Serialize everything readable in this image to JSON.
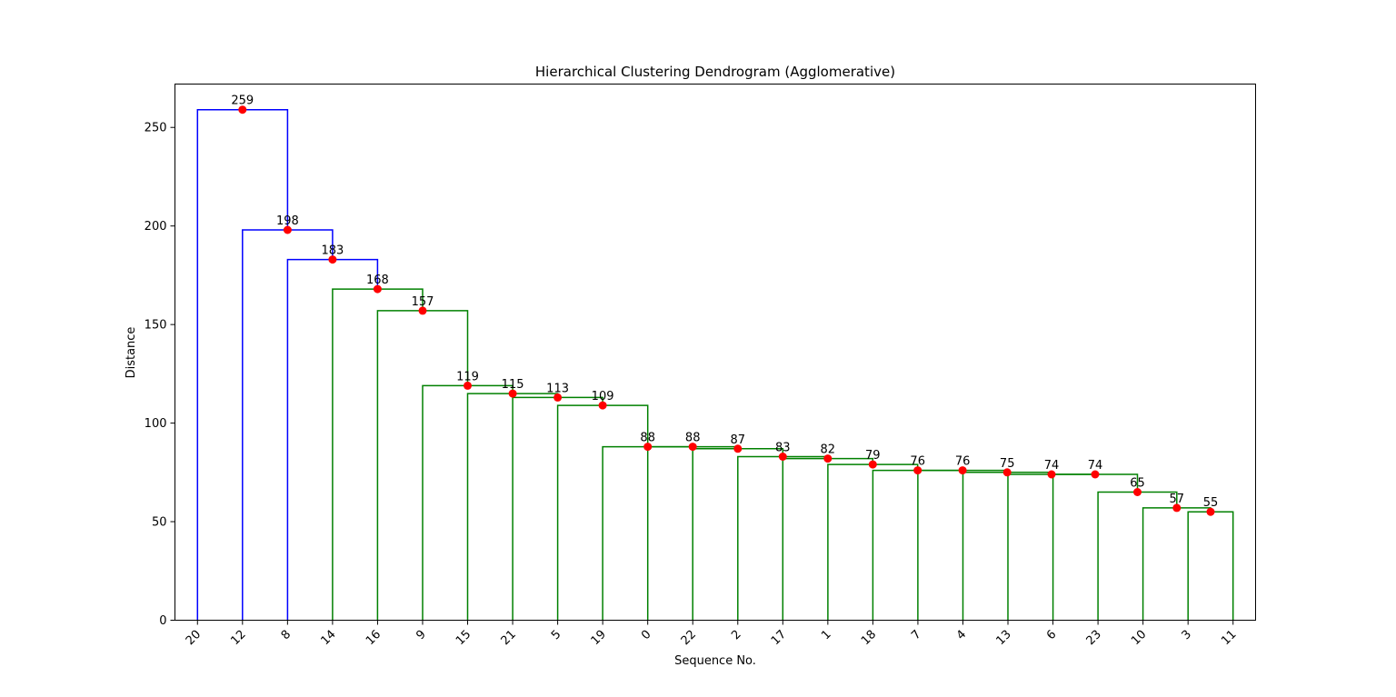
{
  "chart_data": {
    "type": "dendrogram",
    "title": "Hierarchical Clustering Dendrogram (Agglomerative)",
    "xlabel": "Sequence No.",
    "ylabel": "Distance",
    "ylim": [
      0,
      272
    ],
    "yticks": [
      0,
      50,
      100,
      150,
      200,
      250
    ],
    "grid": false,
    "colors": {
      "above_threshold": "#0000ff",
      "cluster": "#008000",
      "node_marker": "#ff0000"
    },
    "leaves": [
      "20",
      "12",
      "8",
      "14",
      "16",
      "9",
      "15",
      "21",
      "5",
      "19",
      "0",
      "22",
      "2",
      "17",
      "1",
      "18",
      "7",
      "4",
      "13",
      "6",
      "23",
      "10",
      "3",
      "11"
    ],
    "merges": [
      {
        "left": "3",
        "right": "11",
        "height": 55,
        "label": "55",
        "color": "cluster"
      },
      {
        "left": "10",
        "right": 0,
        "height": 57,
        "label": "57",
        "color": "cluster"
      },
      {
        "left": "23",
        "right": 1,
        "height": 65,
        "label": "65",
        "color": "cluster"
      },
      {
        "left": "6",
        "right": 2,
        "height": 74,
        "label": "74",
        "color": "cluster"
      },
      {
        "left": "13",
        "right": 3,
        "height": 74,
        "label": "74",
        "color": "cluster"
      },
      {
        "left": "4",
        "right": 4,
        "height": 75,
        "label": "75",
        "color": "cluster"
      },
      {
        "left": "7",
        "right": 5,
        "height": 76,
        "label": "76",
        "color": "cluster"
      },
      {
        "left": "18",
        "right": 6,
        "height": 76,
        "label": "76",
        "color": "cluster"
      },
      {
        "left": "1",
        "right": 7,
        "height": 79,
        "label": "79",
        "color": "cluster"
      },
      {
        "left": "17",
        "right": 8,
        "height": 82,
        "label": "82",
        "color": "cluster"
      },
      {
        "left": "2",
        "right": 9,
        "height": 83,
        "label": "83",
        "color": "cluster"
      },
      {
        "left": "22",
        "right": 10,
        "height": 87,
        "label": "87",
        "color": "cluster"
      },
      {
        "left": "0",
        "right": 11,
        "height": 88,
        "label": "88",
        "color": "cluster"
      },
      {
        "left": "19",
        "right": 12,
        "height": 88,
        "label": "88",
        "color": "cluster"
      },
      {
        "left": "5",
        "right": 13,
        "height": 109,
        "label": "109",
        "color": "cluster"
      },
      {
        "left": "21",
        "right": 14,
        "height": 113,
        "label": "113",
        "color": "cluster"
      },
      {
        "left": "15",
        "right": 15,
        "height": 115,
        "label": "115",
        "color": "cluster"
      },
      {
        "left": "9",
        "right": 16,
        "height": 119,
        "label": "119",
        "color": "cluster"
      },
      {
        "left": "16",
        "right": 17,
        "height": 157,
        "label": "157",
        "color": "cluster"
      },
      {
        "left": "14",
        "right": 18,
        "height": 168,
        "label": "168",
        "color": "cluster"
      },
      {
        "left": "8",
        "right": 19,
        "height": 183,
        "label": "183",
        "color": "above_threshold"
      },
      {
        "left": "12",
        "right": 20,
        "height": 198,
        "label": "198",
        "color": "above_threshold"
      },
      {
        "left": "20",
        "right": 21,
        "height": 259,
        "label": "259",
        "color": "above_threshold"
      }
    ]
  }
}
